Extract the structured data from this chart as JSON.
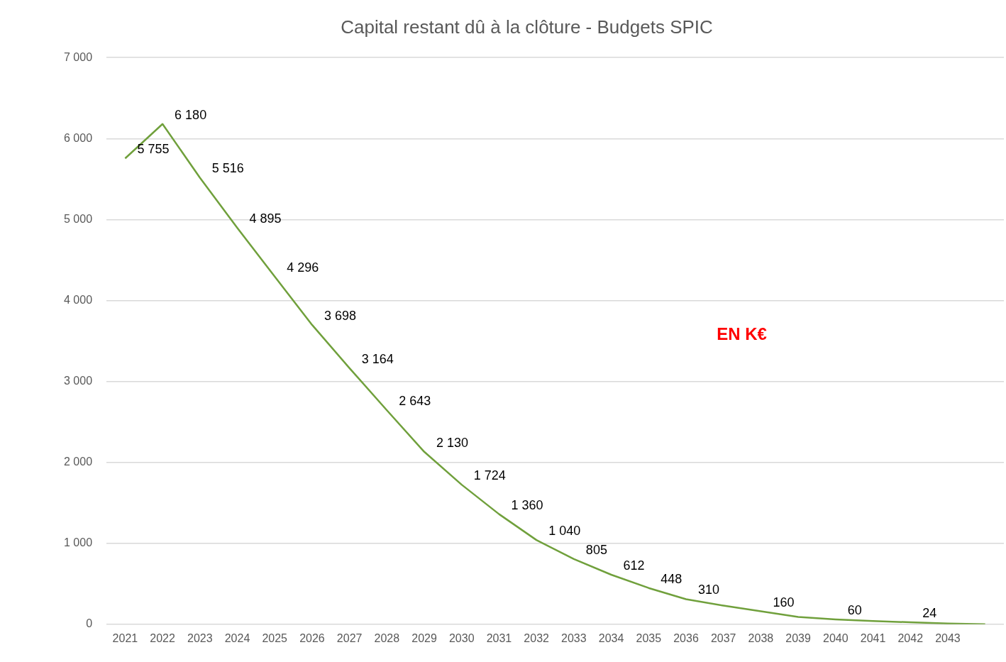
{
  "chart_data": {
    "type": "line",
    "title": "Capital restant dû à la clôture - Budgets SPIC",
    "categories": [
      "2021",
      "2022",
      "2023",
      "2024",
      "2025",
      "2026",
      "2027",
      "2028",
      "2029",
      "2030",
      "2031",
      "2032",
      "2033",
      "2034",
      "2035",
      "2036",
      "2037",
      "2038",
      "2039",
      "2040",
      "2041",
      "2042",
      "2043",
      null
    ],
    "series": [
      {
        "color": "#70a03c",
        "values": [
          5755,
          6180,
          5516,
          4895,
          4296,
          3698,
          3164,
          2643,
          2130,
          1724,
          1360,
          1040,
          805,
          612,
          448,
          310,
          230,
          160,
          90,
          60,
          40,
          24,
          10,
          0
        ],
        "value_labels": [
          "5 755",
          "6 180",
          "5 516",
          "4 895",
          "4 296",
          "3 698",
          "3 164",
          "2 643",
          "2 130",
          "1 724",
          "1 360",
          "1 040",
          "805",
          "612",
          "448",
          "310",
          null,
          "160",
          null,
          "60",
          null,
          "24",
          null,
          null
        ]
      }
    ],
    "ylim": [
      0,
      7000
    ],
    "yticks": [
      {
        "value": 0,
        "label": "0"
      },
      {
        "value": 1000,
        "label": "1 000"
      },
      {
        "value": 2000,
        "label": "2 000"
      },
      {
        "value": 3000,
        "label": "3 000"
      },
      {
        "value": 4000,
        "label": "4 000"
      },
      {
        "value": 5000,
        "label": "5 000"
      },
      {
        "value": 6000,
        "label": "6 000"
      },
      {
        "value": 7000,
        "label": "7 000"
      }
    ],
    "grid": "y",
    "legend": false,
    "marker": "none",
    "line_style": "solid",
    "annotations": [
      "EN K€"
    ]
  }
}
